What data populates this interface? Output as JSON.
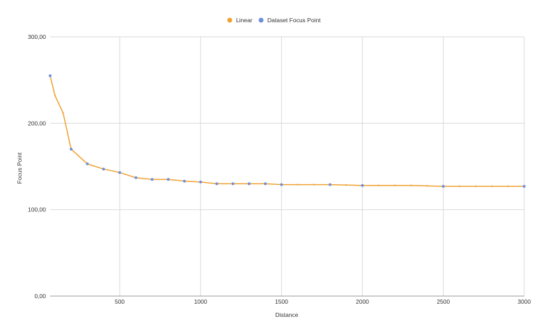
{
  "chart_data": {
    "type": "line",
    "xlabel": "Distance",
    "ylabel": "Focus Point",
    "xlim": [
      70,
      3000
    ],
    "ylim": [
      0,
      300
    ],
    "x_ticks": [
      500,
      1000,
      1500,
      2000,
      2500,
      3000
    ],
    "x_tick_labels": [
      "500",
      "1000",
      "1500",
      "2000",
      "2500",
      "3000"
    ],
    "y_ticks": [
      0,
      100,
      200,
      300
    ],
    "y_tick_labels": [
      "0,00",
      "100,00",
      "200,00",
      "300,00"
    ],
    "grid": true,
    "legend_position": "top",
    "legend": [
      "Linear",
      "Dataset Focus Point"
    ],
    "colors": {
      "linear": "#f0a030",
      "dataset": "#6f8fd8",
      "grid": "#d9d9d9",
      "axis": "#999999"
    },
    "series": [
      {
        "name": "Linear",
        "style": "line",
        "x": [
          70,
          100,
          150,
          200,
          300,
          400,
          500,
          600,
          700,
          800,
          900,
          1000,
          1100,
          1200,
          1300,
          1400,
          1500,
          1600,
          1700,
          1800,
          1900,
          2000,
          2100,
          2200,
          2300,
          2400,
          2500,
          2600,
          2700,
          2800,
          2900,
          3000
        ],
        "values": [
          255,
          232,
          212,
          170,
          153,
          147,
          143,
          137,
          135,
          135,
          133,
          132,
          130,
          130,
          130,
          130,
          129,
          129,
          129,
          129,
          128.5,
          128,
          128,
          128,
          128,
          127.5,
          127,
          127,
          127,
          127,
          127,
          127
        ]
      },
      {
        "name": "Dataset Focus Point",
        "style": "scatter",
        "x": [
          70,
          200,
          300,
          400,
          500,
          600,
          700,
          800,
          900,
          1000,
          1100,
          1200,
          1300,
          1400,
          1500,
          1800,
          2000,
          2500,
          3000
        ],
        "values": [
          255,
          170,
          153,
          147,
          143,
          137,
          135,
          135,
          133,
          132,
          130,
          130,
          130,
          130,
          129,
          129,
          128,
          127,
          127
        ]
      }
    ]
  }
}
